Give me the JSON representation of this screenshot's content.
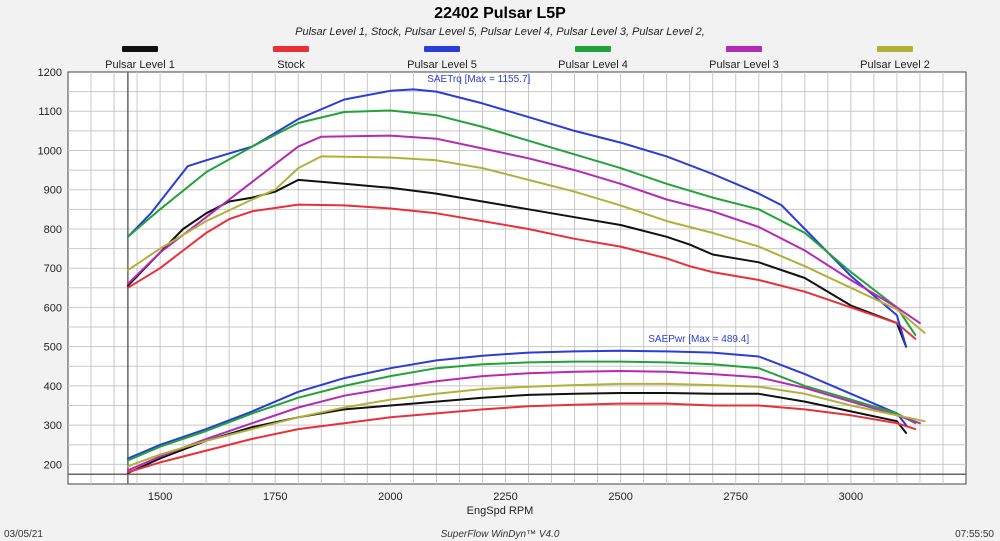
{
  "chart_data": {
    "type": "line",
    "title": "22402 Pulsar L5P",
    "subtitle": "Pulsar Level 1, Stock, Pulsar Level 5, Pulsar Level 4, Pulsar Level 3, Pulsar Level 2,",
    "xlabel": "EngSpd RPM",
    "ylabel": "",
    "xlim": [
      1300,
      3250
    ],
    "ylim": [
      150,
      1200
    ],
    "x_ticks": [
      1500,
      1750,
      2000,
      2250,
      2500,
      2750,
      3000
    ],
    "y_ticks": [
      200,
      300,
      400,
      500,
      600,
      700,
      800,
      900,
      1000,
      1100,
      1200
    ],
    "grid": true,
    "legend_position": "top",
    "series": [
      {
        "name": "Pulsar Level 1",
        "color": "#111111",
        "torque": [
          [
            1430,
            655
          ],
          [
            1500,
            740
          ],
          [
            1550,
            800
          ],
          [
            1600,
            840
          ],
          [
            1650,
            870
          ],
          [
            1700,
            880
          ],
          [
            1750,
            895
          ],
          [
            1800,
            925
          ],
          [
            1900,
            915
          ],
          [
            2000,
            905
          ],
          [
            2100,
            890
          ],
          [
            2200,
            870
          ],
          [
            2300,
            850
          ],
          [
            2400,
            830
          ],
          [
            2500,
            810
          ],
          [
            2600,
            780
          ],
          [
            2650,
            760
          ],
          [
            2700,
            735
          ],
          [
            2800,
            715
          ],
          [
            2900,
            675
          ],
          [
            3000,
            605
          ],
          [
            3100,
            560
          ],
          [
            3120,
            500
          ]
        ],
        "power": [
          [
            1430,
            178
          ],
          [
            1500,
            215
          ],
          [
            1600,
            260
          ],
          [
            1700,
            295
          ],
          [
            1800,
            320
          ],
          [
            1900,
            340
          ],
          [
            2000,
            350
          ],
          [
            2100,
            360
          ],
          [
            2200,
            370
          ],
          [
            2300,
            377
          ],
          [
            2400,
            380
          ],
          [
            2500,
            382
          ],
          [
            2600,
            382
          ],
          [
            2700,
            380
          ],
          [
            2800,
            380
          ],
          [
            2900,
            360
          ],
          [
            3000,
            335
          ],
          [
            3100,
            310
          ],
          [
            3120,
            280
          ]
        ]
      },
      {
        "name": "Stock",
        "color": "#e8303a",
        "torque": [
          [
            1430,
            650
          ],
          [
            1500,
            700
          ],
          [
            1550,
            745
          ],
          [
            1600,
            790
          ],
          [
            1650,
            825
          ],
          [
            1700,
            845
          ],
          [
            1800,
            862
          ],
          [
            1900,
            860
          ],
          [
            2000,
            852
          ],
          [
            2100,
            840
          ],
          [
            2200,
            820
          ],
          [
            2300,
            800
          ],
          [
            2400,
            775
          ],
          [
            2500,
            755
          ],
          [
            2600,
            725
          ],
          [
            2650,
            705
          ],
          [
            2700,
            690
          ],
          [
            2800,
            670
          ],
          [
            2900,
            640
          ],
          [
            3000,
            600
          ],
          [
            3100,
            560
          ],
          [
            3140,
            520
          ]
        ],
        "power": [
          [
            1430,
            180
          ],
          [
            1500,
            205
          ],
          [
            1600,
            235
          ],
          [
            1700,
            265
          ],
          [
            1800,
            290
          ],
          [
            1900,
            305
          ],
          [
            2000,
            320
          ],
          [
            2100,
            330
          ],
          [
            2200,
            340
          ],
          [
            2300,
            348
          ],
          [
            2400,
            352
          ],
          [
            2500,
            355
          ],
          [
            2600,
            355
          ],
          [
            2700,
            350
          ],
          [
            2800,
            350
          ],
          [
            2900,
            340
          ],
          [
            3000,
            325
          ],
          [
            3100,
            305
          ],
          [
            3140,
            290
          ]
        ]
      },
      {
        "name": "Pulsar Level 5",
        "color": "#2a3dd6",
        "torque": [
          [
            1430,
            780
          ],
          [
            1480,
            840
          ],
          [
            1520,
            900
          ],
          [
            1560,
            960
          ],
          [
            1600,
            975
          ],
          [
            1700,
            1010
          ],
          [
            1800,
            1080
          ],
          [
            1900,
            1130
          ],
          [
            2000,
            1152
          ],
          [
            2050,
            1155.7
          ],
          [
            2100,
            1150
          ],
          [
            2200,
            1120
          ],
          [
            2300,
            1085
          ],
          [
            2400,
            1050
          ],
          [
            2500,
            1020
          ],
          [
            2600,
            985
          ],
          [
            2700,
            940
          ],
          [
            2800,
            890
          ],
          [
            2850,
            860
          ],
          [
            2900,
            800
          ],
          [
            3000,
            680
          ],
          [
            3100,
            580
          ],
          [
            3120,
            500
          ]
        ],
        "power": [
          [
            1430,
            215
          ],
          [
            1500,
            250
          ],
          [
            1600,
            290
          ],
          [
            1700,
            335
          ],
          [
            1800,
            385
          ],
          [
            1900,
            420
          ],
          [
            2000,
            445
          ],
          [
            2100,
            465
          ],
          [
            2200,
            477
          ],
          [
            2300,
            485
          ],
          [
            2400,
            488
          ],
          [
            2500,
            489.4
          ],
          [
            2600,
            488
          ],
          [
            2700,
            485
          ],
          [
            2800,
            475
          ],
          [
            2900,
            430
          ],
          [
            3000,
            380
          ],
          [
            3100,
            330
          ],
          [
            3120,
            300
          ]
        ]
      },
      {
        "name": "Pulsar Level 4",
        "color": "#21a33a",
        "torque": [
          [
            1430,
            780
          ],
          [
            1500,
            850
          ],
          [
            1600,
            945
          ],
          [
            1700,
            1010
          ],
          [
            1800,
            1070
          ],
          [
            1900,
            1098
          ],
          [
            2000,
            1102
          ],
          [
            2100,
            1090
          ],
          [
            2200,
            1060
          ],
          [
            2300,
            1025
          ],
          [
            2400,
            990
          ],
          [
            2500,
            955
          ],
          [
            2600,
            915
          ],
          [
            2700,
            880
          ],
          [
            2800,
            850
          ],
          [
            2900,
            790
          ],
          [
            3000,
            690
          ],
          [
            3100,
            600
          ],
          [
            3140,
            530
          ]
        ],
        "power": [
          [
            1430,
            210
          ],
          [
            1500,
            245
          ],
          [
            1600,
            285
          ],
          [
            1700,
            330
          ],
          [
            1800,
            370
          ],
          [
            1900,
            400
          ],
          [
            2000,
            425
          ],
          [
            2100,
            445
          ],
          [
            2200,
            455
          ],
          [
            2300,
            460
          ],
          [
            2400,
            462
          ],
          [
            2500,
            462
          ],
          [
            2600,
            460
          ],
          [
            2700,
            455
          ],
          [
            2800,
            445
          ],
          [
            2900,
            400
          ],
          [
            3000,
            365
          ],
          [
            3100,
            330
          ],
          [
            3140,
            305
          ]
        ]
      },
      {
        "name": "Pulsar Level 3",
        "color": "#b52ab5",
        "torque": [
          [
            1430,
            660
          ],
          [
            1500,
            740
          ],
          [
            1600,
            830
          ],
          [
            1700,
            920
          ],
          [
            1750,
            965
          ],
          [
            1800,
            1010
          ],
          [
            1850,
            1035
          ],
          [
            2000,
            1038
          ],
          [
            2100,
            1030
          ],
          [
            2200,
            1005
          ],
          [
            2300,
            980
          ],
          [
            2400,
            950
          ],
          [
            2500,
            915
          ],
          [
            2600,
            875
          ],
          [
            2700,
            845
          ],
          [
            2800,
            805
          ],
          [
            2900,
            745
          ],
          [
            3000,
            670
          ],
          [
            3100,
            600
          ],
          [
            3150,
            560
          ]
        ],
        "power": [
          [
            1430,
            185
          ],
          [
            1500,
            220
          ],
          [
            1600,
            265
          ],
          [
            1700,
            305
          ],
          [
            1800,
            345
          ],
          [
            1900,
            375
          ],
          [
            2000,
            395
          ],
          [
            2100,
            412
          ],
          [
            2200,
            425
          ],
          [
            2300,
            432
          ],
          [
            2400,
            436
          ],
          [
            2500,
            438
          ],
          [
            2600,
            436
          ],
          [
            2700,
            430
          ],
          [
            2800,
            422
          ],
          [
            2900,
            395
          ],
          [
            3000,
            360
          ],
          [
            3100,
            325
          ],
          [
            3150,
            305
          ]
        ]
      },
      {
        "name": "Pulsar Level 2",
        "color": "#b3b03a",
        "torque": [
          [
            1430,
            695
          ],
          [
            1500,
            750
          ],
          [
            1600,
            820
          ],
          [
            1700,
            875
          ],
          [
            1750,
            900
          ],
          [
            1800,
            955
          ],
          [
            1850,
            985
          ],
          [
            2000,
            982
          ],
          [
            2100,
            975
          ],
          [
            2200,
            955
          ],
          [
            2300,
            925
          ],
          [
            2400,
            895
          ],
          [
            2500,
            860
          ],
          [
            2600,
            820
          ],
          [
            2700,
            790
          ],
          [
            2800,
            755
          ],
          [
            2900,
            705
          ],
          [
            3000,
            650
          ],
          [
            3100,
            595
          ],
          [
            3160,
            535
          ]
        ],
        "power": [
          [
            1430,
            195
          ],
          [
            1500,
            225
          ],
          [
            1600,
            260
          ],
          [
            1700,
            290
          ],
          [
            1800,
            320
          ],
          [
            1900,
            345
          ],
          [
            2000,
            365
          ],
          [
            2100,
            380
          ],
          [
            2200,
            392
          ],
          [
            2300,
            398
          ],
          [
            2400,
            402
          ],
          [
            2500,
            405
          ],
          [
            2600,
            405
          ],
          [
            2700,
            402
          ],
          [
            2800,
            398
          ],
          [
            2900,
            380
          ],
          [
            3000,
            350
          ],
          [
            3100,
            325
          ],
          [
            3160,
            310
          ]
        ]
      }
    ],
    "annotations": [
      {
        "text": "SAETrq [Max = 1155.7]",
        "x": 2080,
        "y": 1175,
        "color": "#2a3dd6"
      },
      {
        "text": "SAEPwr [Max = 489.4]",
        "x": 2560,
        "y": 512,
        "color": "#2a3dd6"
      }
    ]
  },
  "footer": {
    "date": "03/05/21",
    "software": "SuperFlow WinDyn™ V4.0",
    "time": "07:55:50"
  }
}
